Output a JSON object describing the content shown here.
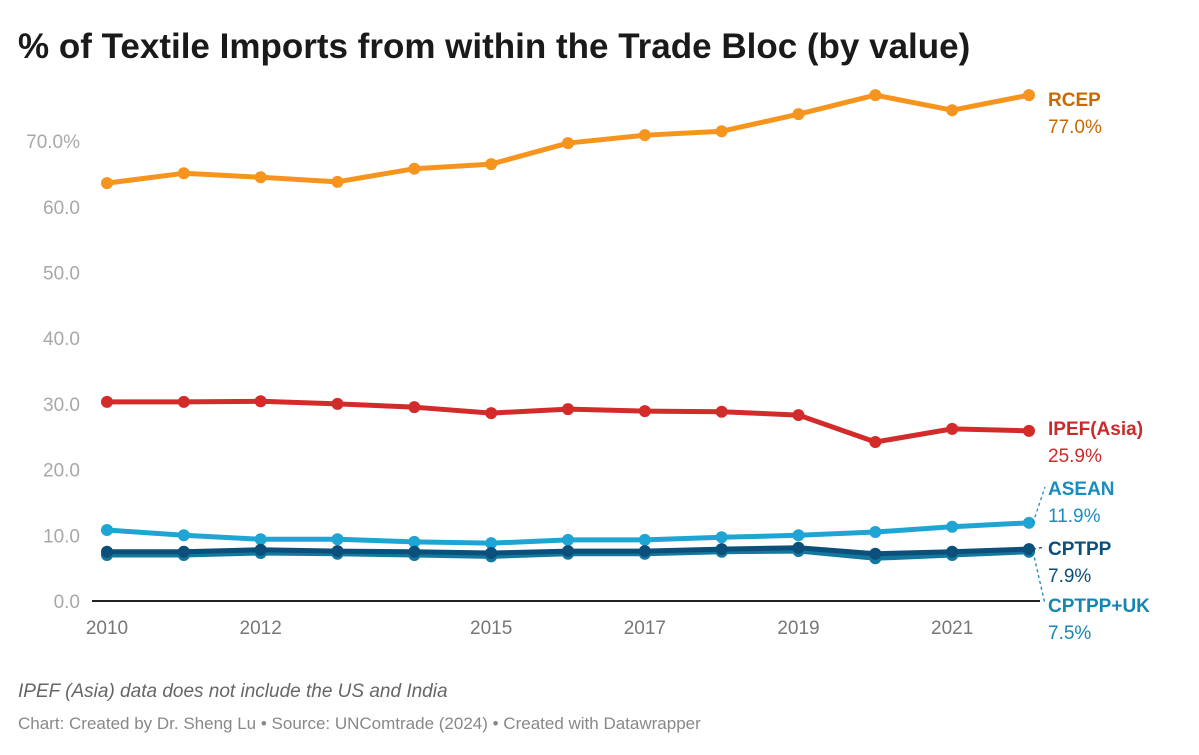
{
  "chart_data": {
    "type": "line",
    "title": "% of Textile Imports from within the Trade Bloc (by value)",
    "note": "IPEF (Asia) data does not include the US and India",
    "footer": "Chart: Created by Dr. Sheng Lu • Source: UNComtrade (2024) • Created with Datawrapper",
    "x": [
      2010,
      2011,
      2012,
      2013,
      2014,
      2015,
      2016,
      2017,
      2018,
      2019,
      2020,
      2021,
      2022
    ],
    "xticks": [
      "2010",
      "2012",
      "2015",
      "2017",
      "2019",
      "2021"
    ],
    "yticks": [
      "0.0",
      "10.0",
      "20.0",
      "30.0",
      "40.0",
      "50.0",
      "60.0",
      "70.0%"
    ],
    "ylim": [
      0,
      77
    ],
    "grid": false,
    "series": [
      {
        "name": "RCEP",
        "end_label": "77.0%",
        "color": "#f7941d",
        "label_color": "#c86a00",
        "values": [
          63.6,
          65.1,
          64.5,
          63.8,
          65.8,
          66.5,
          69.7,
          70.9,
          71.5,
          74.1,
          77.0,
          74.7,
          77.0
        ]
      },
      {
        "name": "IPEF(Asia)",
        "end_label": "25.9%",
        "color": "#d32a2a",
        "label_color": "#cc2a2a",
        "values": [
          30.3,
          30.3,
          30.4,
          30.0,
          29.5,
          28.6,
          29.2,
          28.9,
          28.8,
          28.3,
          24.2,
          26.2,
          25.9
        ]
      },
      {
        "name": "ASEAN",
        "end_label": "11.9%",
        "color": "#1ea5d4",
        "label_color": "#1a8dbf",
        "values": [
          10.8,
          10.0,
          9.4,
          9.4,
          9.0,
          8.8,
          9.3,
          9.3,
          9.7,
          10.0,
          10.5,
          11.3,
          11.9
        ]
      },
      {
        "name": "CPTPP+UK",
        "end_label": "7.5%",
        "color": "#13789e",
        "label_color": "#1686b0",
        "values": [
          7.0,
          7.0,
          7.3,
          7.2,
          7.0,
          6.8,
          7.2,
          7.2,
          7.5,
          7.6,
          6.5,
          7.0,
          7.5
        ]
      },
      {
        "name": "CPTPP",
        "end_label": "7.9%",
        "color": "#0b4f7a",
        "label_color": "#0b4f7a",
        "values": [
          7.5,
          7.5,
          7.8,
          7.6,
          7.5,
          7.3,
          7.6,
          7.6,
          7.9,
          8.1,
          7.2,
          7.5,
          7.9
        ]
      }
    ]
  }
}
